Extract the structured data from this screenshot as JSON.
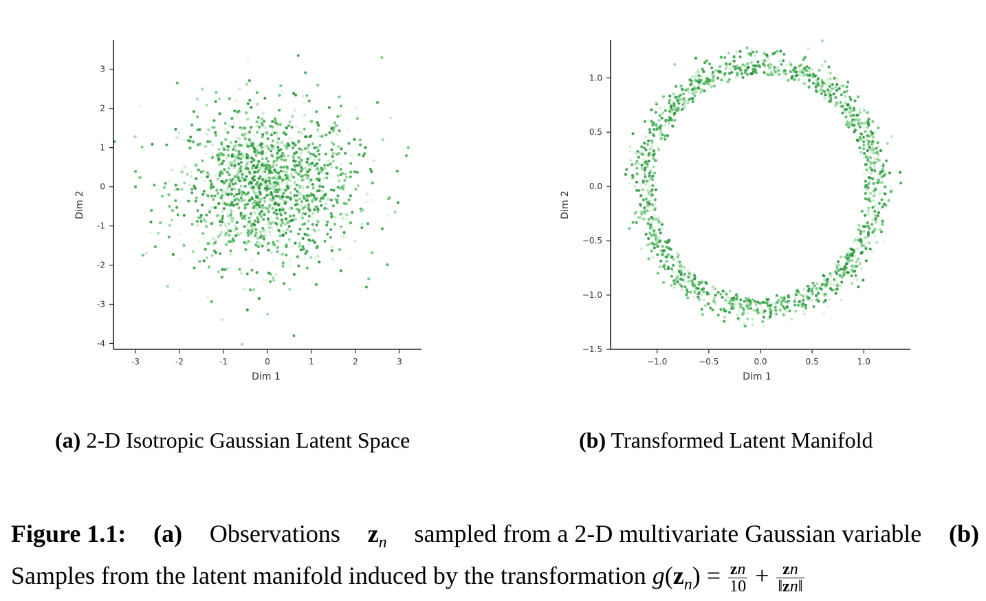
{
  "chart_data": [
    {
      "type": "scatter",
      "subcaption_tag": "(a)",
      "subcaption_text": "2-D Isotropic Gaussian Latent Space",
      "xlabel": "Dim 1",
      "ylabel": "Dim 2",
      "xlim": [
        -3.5,
        3.5
      ],
      "ylim": [
        -4.15,
        3.75
      ],
      "xticks": [
        -3,
        -2,
        -1,
        0,
        1,
        2,
        3
      ],
      "xtick_labels": [
        "-3",
        "-2",
        "-1",
        "0",
        "1",
        "2",
        "3"
      ],
      "yticks": [
        3,
        2,
        1,
        0,
        -1,
        -2,
        -3,
        -4
      ],
      "ytick_labels": [
        "3",
        "2",
        "1",
        "0",
        "-1",
        "-2",
        "-3",
        "-4"
      ],
      "distribution": "isotropic gaussian, mean 0, std 1",
      "n_points": 1500,
      "color": "#2e9b3e",
      "grid": false,
      "notable_points": [
        {
          "x": 0.7,
          "y": 3.35
        },
        {
          "x": 2.6,
          "y": 3.3
        },
        {
          "x": -2.05,
          "y": 2.65
        },
        {
          "x": -2.9,
          "y": 2.05
        },
        {
          "x": 3.2,
          "y": 1.0
        },
        {
          "x": -3.0,
          "y": 0.0
        },
        {
          "x": 2.95,
          "y": 0.4
        },
        {
          "x": 2.9,
          "y": -0.65
        },
        {
          "x": -2.75,
          "y": -1.7
        },
        {
          "x": -2.0,
          "y": -2.65
        },
        {
          "x": 2.3,
          "y": -2.35
        },
        {
          "x": 0.0,
          "y": -3.25
        },
        {
          "x": 0.6,
          "y": -3.8
        },
        {
          "x": 2.5,
          "y": 2.15
        },
        {
          "x": 2.8,
          "y": 1.75
        }
      ]
    },
    {
      "type": "scatter",
      "subcaption_tag": "(b)",
      "subcaption_text": "Transformed Latent Manifold",
      "xlabel": "Dim 1",
      "ylabel": "Dim 2",
      "xlim": [
        -1.45,
        1.45
      ],
      "ylim": [
        -1.5,
        1.35
      ],
      "xticks": [
        -1.0,
        -0.5,
        0.0,
        0.5,
        1.0
      ],
      "xtick_labels": [
        "−1.0",
        "−0.5",
        "0.0",
        "0.5",
        "1.0"
      ],
      "yticks": [
        1.0,
        0.5,
        0.0,
        -0.5,
        -1.0,
        -1.5
      ],
      "ytick_labels": [
        "1.0",
        "0.5",
        "0.0",
        "−0.5",
        "−1.0",
        "−1.5"
      ],
      "distribution": "g(z) = z/10 + z/||z||, z ~ N(0, I)",
      "ring_radius": 1.0,
      "n_points": 1500,
      "color": "#2e9b3e",
      "grid": false
    }
  ],
  "caption": {
    "label": "Figure 1.1:",
    "a_tag": "(a)",
    "line1_text": "Observations",
    "z_symbol": "z",
    "z_sub": "n",
    "line1_rest": "sampled from a 2-D multivariate Gaussian variable",
    "b_tag": "(b)",
    "line2_text": "Samples from the latent manifold induced by the transformation",
    "g": "g",
    "frac1_den": "10",
    "plus": "+",
    "equals": "="
  }
}
